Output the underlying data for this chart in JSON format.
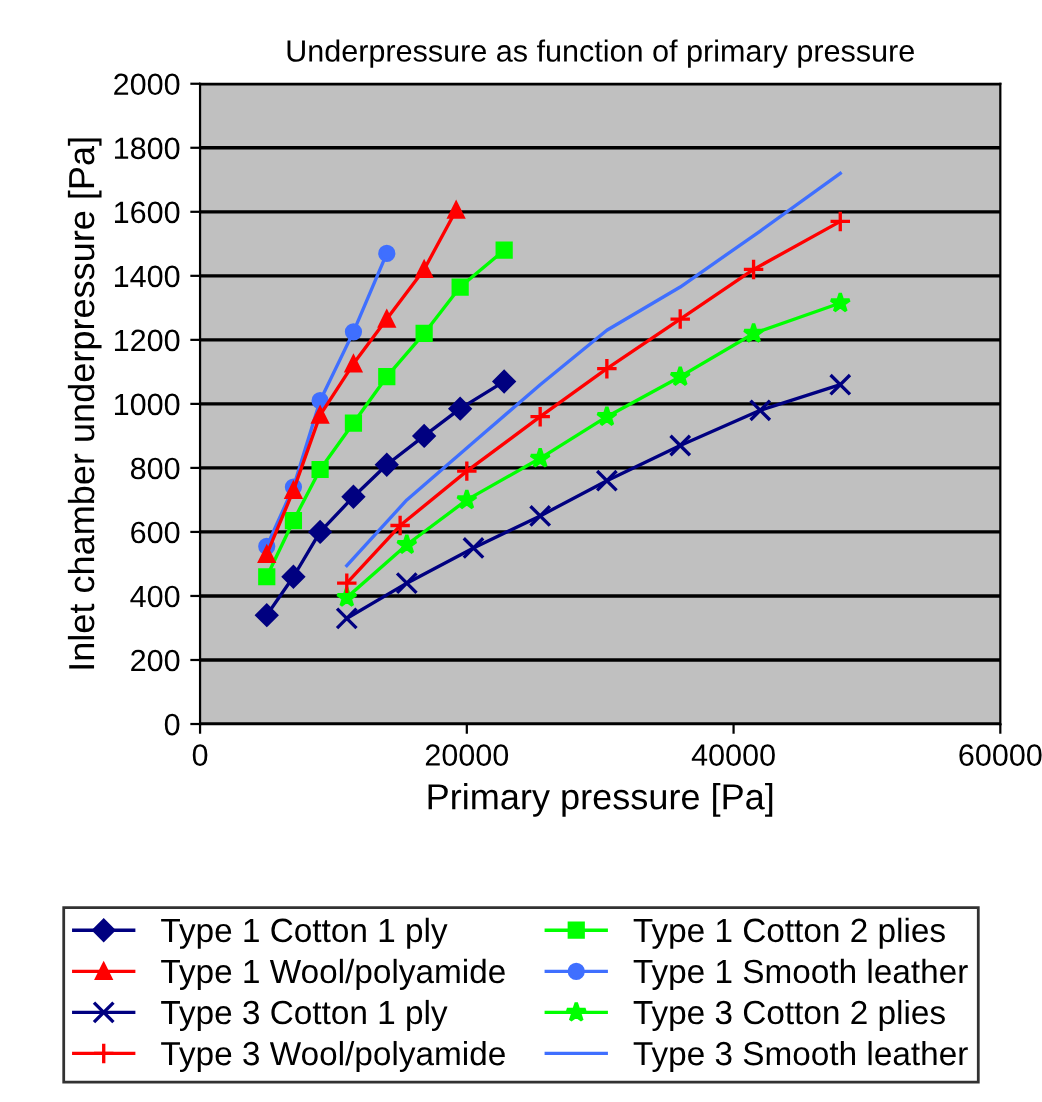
{
  "chart_data": {
    "type": "line",
    "title": "Underpressure as function of primary pressure",
    "xlabel": "Primary pressure [Pa]",
    "ylabel": "Inlet chamber underpressure [Pa]",
    "xlim": [
      0,
      60000
    ],
    "xticks": [
      0,
      20000,
      40000,
      60000
    ],
    "ylim": [
      0,
      2000
    ],
    "yticks": [
      0,
      200,
      400,
      600,
      800,
      1000,
      1200,
      1400,
      1600,
      1800,
      2000
    ],
    "grid": "y",
    "legend": "bottom",
    "line_style": "solid",
    "series": [
      {
        "name": "Type 1 Cotton 1 ply",
        "color": "#000080",
        "marker": "diamond",
        "x": [
          5000,
          7000,
          9000,
          11500,
          14000,
          16800,
          19500,
          22800
        ],
        "values": [
          340,
          460,
          600,
          710,
          810,
          900,
          985,
          1070
        ]
      },
      {
        "name": "Type 1 Cotton 2 plies",
        "color": "#00ff00",
        "marker": "square",
        "x": [
          5000,
          7000,
          9000,
          11500,
          14000,
          16800,
          19500,
          22800
        ],
        "values": [
          460,
          635,
          795,
          940,
          1085,
          1220,
          1365,
          1480
        ]
      },
      {
        "name": "Type 1 Wool/polyamide",
        "color": "#ff0000",
        "marker": "triangle",
        "x": [
          5000,
          7000,
          9000,
          11500,
          14000,
          16800,
          19200
        ],
        "values": [
          530,
          730,
          965,
          1125,
          1265,
          1420,
          1605
        ]
      },
      {
        "name": "Type 1 Smooth leather",
        "color": "#3f6fff",
        "marker": "circle",
        "x": [
          5000,
          7000,
          9000,
          11500,
          14000
        ],
        "values": [
          555,
          740,
          1010,
          1225,
          1470
        ]
      },
      {
        "name": "Type 3 Cotton 1 ply",
        "color": "#000080",
        "marker": "cross",
        "x": [
          11000,
          15500,
          20500,
          25500,
          30500,
          36000,
          42000,
          48000
        ],
        "values": [
          330,
          440,
          550,
          650,
          760,
          870,
          980,
          1060
        ]
      },
      {
        "name": "Type 3 Cotton 2 plies",
        "color": "#00ff00",
        "marker": "star",
        "x": [
          11000,
          15500,
          20000,
          25500,
          30500,
          36000,
          41500,
          48000
        ],
        "values": [
          395,
          560,
          700,
          830,
          960,
          1085,
          1220,
          1315
        ]
      },
      {
        "name": "Type 3 Wool/polyamide",
        "color": "#ff0000",
        "marker": "plus",
        "x": [
          11000,
          15000,
          20000,
          25500,
          30500,
          36000,
          41500,
          48000
        ],
        "values": [
          440,
          620,
          790,
          960,
          1110,
          1265,
          1420,
          1570
        ]
      },
      {
        "name": "Type 3 Smooth leather",
        "color": "#3f6fff",
        "marker": "none",
        "x": [
          11000,
          15500,
          20500,
          25500,
          30500,
          36000,
          42000,
          48000
        ],
        "values": [
          495,
          700,
          880,
          1060,
          1230,
          1365,
          1540,
          1720
        ]
      }
    ]
  }
}
